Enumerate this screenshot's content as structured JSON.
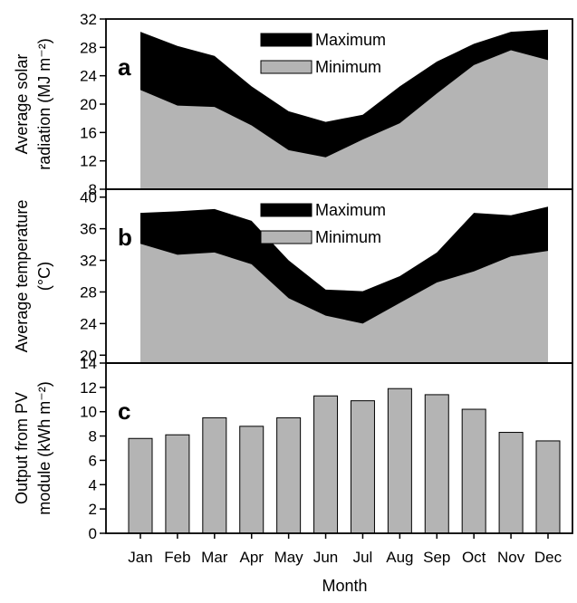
{
  "chart_data": [
    {
      "type": "area",
      "panel_label": "a",
      "ylabel_lines": [
        "Average solar",
        "radiation (MJ m⁻²)"
      ],
      "ylim": [
        8,
        32
      ],
      "yticks": [
        8,
        12,
        16,
        20,
        24,
        28,
        32
      ],
      "categories": [
        "Jan",
        "Feb",
        "Mar",
        "Apr",
        "May",
        "Jun",
        "Jul",
        "Aug",
        "Sep",
        "Oct",
        "Nov",
        "Dec"
      ],
      "series": [
        {
          "name": "Maximum",
          "color": "#000000",
          "values": [
            30.2,
            28.2,
            26.8,
            22.5,
            19.0,
            17.5,
            18.5,
            22.5,
            26.0,
            28.5,
            30.2,
            30.5
          ]
        },
        {
          "name": "Minimum",
          "color": "#b4b4b4",
          "values": [
            22.0,
            19.8,
            19.6,
            17.0,
            13.5,
            12.5,
            15.0,
            17.3,
            21.5,
            25.5,
            27.6,
            26.2
          ]
        }
      ],
      "legend": "top-center"
    },
    {
      "type": "area",
      "panel_label": "b",
      "ylabel_lines": [
        "Average temperature",
        "(°C)"
      ],
      "ylim": [
        19,
        41
      ],
      "yticks": [
        20,
        24,
        28,
        32,
        36,
        40
      ],
      "categories": [
        "Jan",
        "Feb",
        "Mar",
        "Apr",
        "May",
        "Jun",
        "Jul",
        "Aug",
        "Sep",
        "Oct",
        "Nov",
        "Dec"
      ],
      "series": [
        {
          "name": "Maximum",
          "color": "#000000",
          "values": [
            38.0,
            38.2,
            38.5,
            37.0,
            32.0,
            28.3,
            28.1,
            30.0,
            33.0,
            38.0,
            37.7,
            38.8
          ]
        },
        {
          "name": "Minimum",
          "color": "#b4b4b4",
          "values": [
            34.1,
            32.7,
            33.0,
            31.5,
            27.2,
            25.0,
            24.0,
            26.6,
            29.2,
            30.6,
            32.5,
            33.2
          ]
        }
      ],
      "legend": "top-center"
    },
    {
      "type": "bar",
      "panel_label": "c",
      "ylabel_lines": [
        "Output from PV",
        "module (kWh m⁻²)"
      ],
      "ylim": [
        0,
        14
      ],
      "yticks": [
        0,
        2,
        4,
        6,
        8,
        10,
        12,
        14
      ],
      "categories": [
        "Jan",
        "Feb",
        "Mar",
        "Apr",
        "May",
        "Jun",
        "Jul",
        "Aug",
        "Sep",
        "Oct",
        "Nov",
        "Dec"
      ],
      "values": [
        7.8,
        8.1,
        9.5,
        8.8,
        9.5,
        11.3,
        10.9,
        11.9,
        11.4,
        10.2,
        8.3,
        7.6
      ],
      "bar_color": "#b4b4b4",
      "xlabel": "Month"
    }
  ]
}
